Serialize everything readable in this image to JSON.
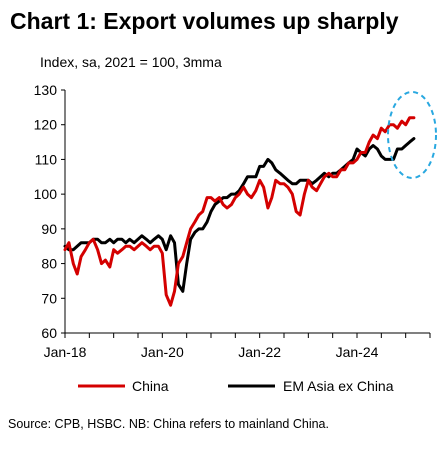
{
  "title": "Chart 1: Export volumes up sharply",
  "subtitle": "Index, sa, 2021 = 100, 3mma",
  "source": "Source: CPB, HSBC. NB: China refers to mainland China.",
  "chart_data": {
    "type": "line",
    "ylim": [
      60,
      130
    ],
    "yticks": [
      60,
      70,
      80,
      90,
      100,
      110,
      120,
      130
    ],
    "xlim": [
      2018.0,
      2025.5
    ],
    "xticks": [
      {
        "label": "Jan-18",
        "x": 2018.0
      },
      {
        "label": "Jan-20",
        "x": 2020.0
      },
      {
        "label": "Jan-22",
        "x": 2022.0
      },
      {
        "label": "Jan-24",
        "x": 2024.0
      }
    ],
    "legend_position": "bottom",
    "grid": false,
    "annotation": "dashed ellipse highlighting latest values",
    "series": [
      {
        "name": "China",
        "color": "#d40000",
        "x": [
          2018.0,
          2018.08,
          2018.17,
          2018.25,
          2018.33,
          2018.42,
          2018.5,
          2018.58,
          2018.67,
          2018.75,
          2018.83,
          2018.92,
          2019.0,
          2019.08,
          2019.17,
          2019.25,
          2019.33,
          2019.42,
          2019.5,
          2019.58,
          2019.67,
          2019.75,
          2019.83,
          2019.92,
          2020.0,
          2020.08,
          2020.17,
          2020.25,
          2020.33,
          2020.42,
          2020.5,
          2020.58,
          2020.67,
          2020.75,
          2020.83,
          2020.92,
          2021.0,
          2021.08,
          2021.17,
          2021.25,
          2021.33,
          2021.42,
          2021.5,
          2021.58,
          2021.67,
          2021.75,
          2021.83,
          2021.92,
          2022.0,
          2022.08,
          2022.17,
          2022.25,
          2022.33,
          2022.42,
          2022.5,
          2022.58,
          2022.67,
          2022.75,
          2022.83,
          2022.92,
          2023.0,
          2023.08,
          2023.17,
          2023.25,
          2023.33,
          2023.42,
          2023.5,
          2023.58,
          2023.67,
          2023.75,
          2023.83,
          2023.92,
          2024.0,
          2024.08,
          2024.17,
          2024.25,
          2024.33,
          2024.42,
          2024.5,
          2024.58,
          2024.67,
          2024.75,
          2024.83,
          2024.92,
          2025.0,
          2025.08,
          2025.17
        ],
        "values": [
          84,
          86,
          80,
          77,
          82,
          84,
          86,
          87,
          84,
          80,
          81,
          79,
          84,
          83,
          84,
          85,
          85,
          84,
          85,
          86,
          85,
          84,
          85,
          85,
          83,
          71,
          68,
          72,
          80,
          82,
          86,
          90,
          92,
          94,
          95,
          99,
          99,
          98,
          99,
          97,
          96,
          97,
          99,
          100,
          102,
          100,
          99,
          101,
          104,
          102,
          96,
          99,
          104,
          103,
          103,
          102,
          100,
          95,
          94,
          100,
          104,
          102,
          101,
          103,
          105,
          106,
          105,
          105,
          107,
          107,
          109,
          109,
          110,
          112,
          112,
          115,
          117,
          116,
          119,
          118,
          120,
          120,
          119,
          121,
          120,
          122,
          122
        ]
      },
      {
        "name": "EM Asia ex China",
        "color": "#000000",
        "x": [
          2018.0,
          2018.08,
          2018.17,
          2018.25,
          2018.33,
          2018.42,
          2018.5,
          2018.58,
          2018.67,
          2018.75,
          2018.83,
          2018.92,
          2019.0,
          2019.08,
          2019.17,
          2019.25,
          2019.33,
          2019.42,
          2019.5,
          2019.58,
          2019.67,
          2019.75,
          2019.83,
          2019.92,
          2020.0,
          2020.08,
          2020.17,
          2020.25,
          2020.33,
          2020.42,
          2020.5,
          2020.58,
          2020.67,
          2020.75,
          2020.83,
          2020.92,
          2021.0,
          2021.08,
          2021.17,
          2021.25,
          2021.33,
          2021.42,
          2021.5,
          2021.58,
          2021.67,
          2021.75,
          2021.83,
          2021.92,
          2022.0,
          2022.08,
          2022.17,
          2022.25,
          2022.33,
          2022.42,
          2022.5,
          2022.58,
          2022.67,
          2022.75,
          2022.83,
          2022.92,
          2023.0,
          2023.08,
          2023.17,
          2023.25,
          2023.33,
          2023.42,
          2023.5,
          2023.58,
          2023.67,
          2023.75,
          2023.83,
          2023.92,
          2024.0,
          2024.08,
          2024.17,
          2024.25,
          2024.33,
          2024.42,
          2024.5,
          2024.58,
          2024.67,
          2024.75,
          2024.83,
          2024.92,
          2025.0,
          2025.08,
          2025.17
        ],
        "values": [
          85,
          84,
          84,
          85,
          86,
          86,
          86,
          87,
          87,
          86,
          86,
          87,
          86,
          87,
          87,
          86,
          87,
          86,
          87,
          88,
          87,
          86,
          87,
          88,
          87,
          84,
          88,
          86,
          74,
          72,
          80,
          87,
          89,
          90,
          90,
          92,
          95,
          97,
          98,
          99,
          99,
          100,
          100,
          101,
          103,
          105,
          105,
          105,
          108,
          108,
          110,
          109,
          107,
          106,
          105,
          104,
          103,
          103,
          104,
          104,
          104,
          103,
          104,
          105,
          106,
          105,
          106,
          106,
          107,
          108,
          109,
          110,
          113,
          112,
          111,
          113,
          114,
          113,
          111,
          110,
          110,
          110,
          113,
          113,
          114,
          115,
          116
        ]
      }
    ]
  }
}
